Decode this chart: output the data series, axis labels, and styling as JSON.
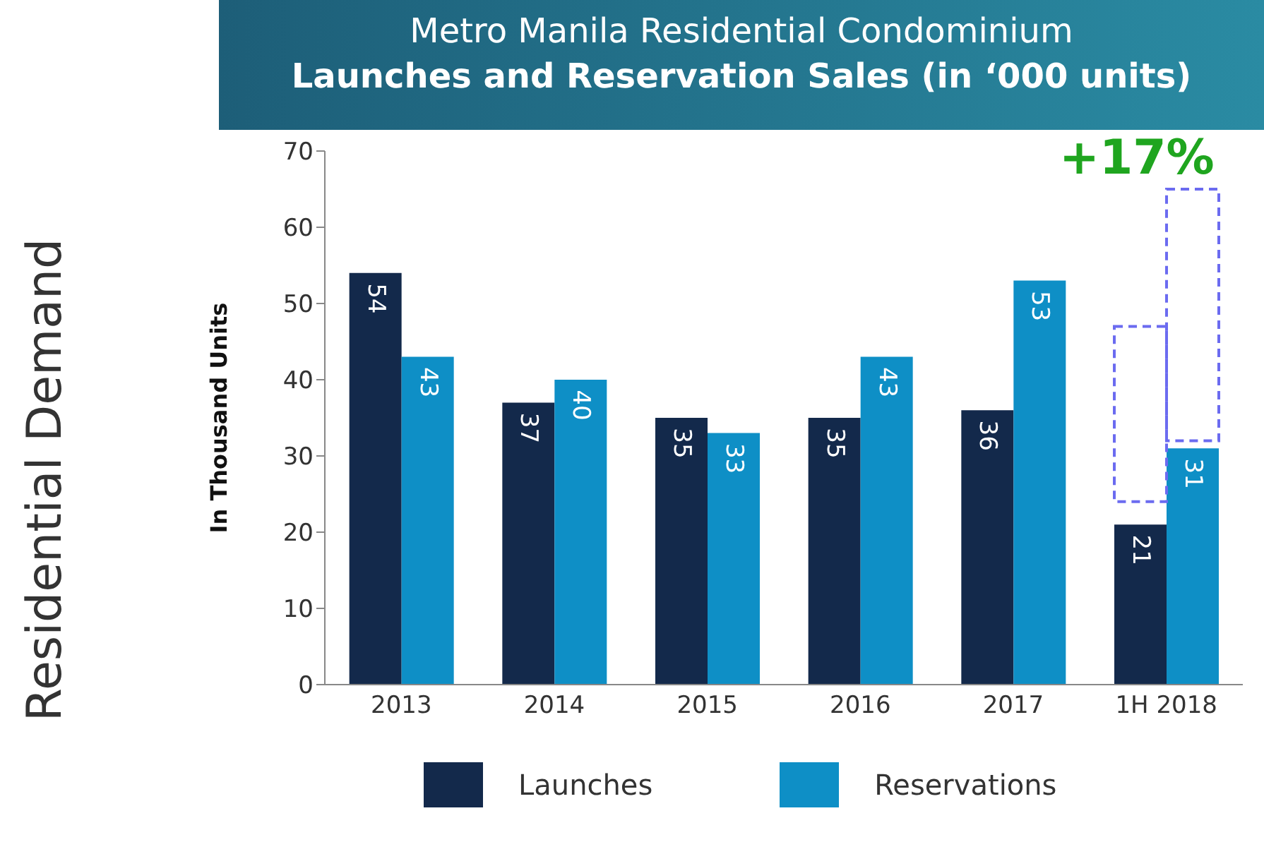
{
  "chart_data": {
    "type": "bar",
    "title": "Metro Manila Residential Condominium",
    "subtitle": "Launches and Reservation Sales (in ‘000 units)",
    "ylabel": "In Thousand Units",
    "categories": [
      "2013",
      "2014",
      "2015",
      "2016",
      "2017",
      "1H 2018"
    ],
    "series": [
      {
        "name": "Launches",
        "color": "#13294b",
        "values": [
          54,
          37,
          35,
          35,
          36,
          21
        ],
        "value_labels": [
          "54",
          "37",
          "35",
          "35",
          "36",
          "21"
        ]
      },
      {
        "name": "Reservations",
        "color": "#0e8fc6",
        "values": [
          43,
          40,
          33,
          43,
          53,
          31
        ],
        "value_labels": [
          "43",
          "40",
          "33",
          "43",
          "53",
          "31"
        ]
      },
      {
        "color": "#6b6bf0",
        "line_style": "dashed",
        "base": [
          null,
          null,
          null,
          null,
          null,
          24
        ],
        "values": [
          null,
          null,
          null,
          null,
          null,
          23
        ]
      },
      {
        "color": "#6b6bf0",
        "line_style": "dashed",
        "base": [
          null,
          null,
          null,
          null,
          null,
          32
        ],
        "values": [
          null,
          null,
          null,
          null,
          null,
          33
        ]
      }
    ],
    "ylim": [
      0,
      70
    ],
    "yticks": [
      0,
      10,
      20,
      30,
      40,
      50,
      60,
      70
    ],
    "grid": false,
    "legend": "bottom",
    "annotations": [
      "+17%",
      "Residential Demand"
    ]
  }
}
